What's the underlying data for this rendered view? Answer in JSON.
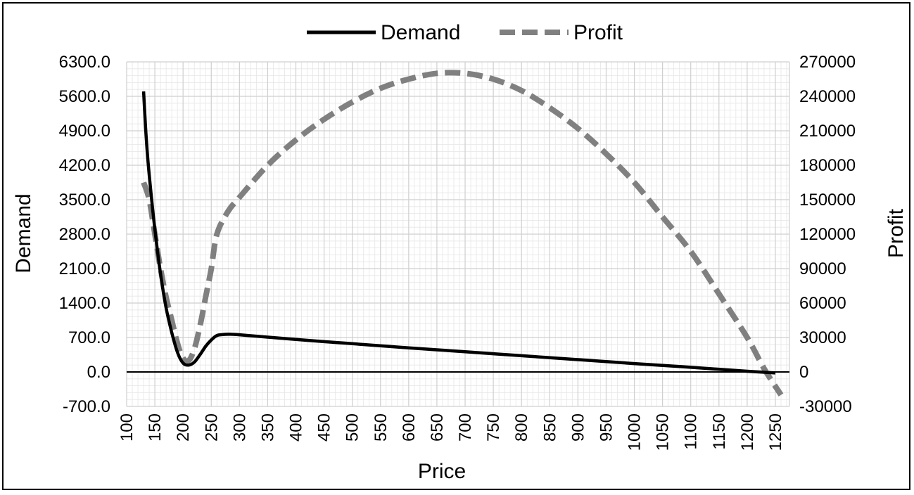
{
  "chart_data": {
    "type": "line",
    "title": "",
    "xlabel": "Price",
    "ylabel": "Demand",
    "y2label": "Profit",
    "xlim": [
      100,
      1275
    ],
    "ylim": [
      -700,
      6300
    ],
    "y2lim": [
      -30000,
      270000
    ],
    "x_ticks": [
      "100",
      "150",
      "200",
      "250",
      "300",
      "350",
      "400",
      "450",
      "500",
      "550",
      "600",
      "650",
      "700",
      "750",
      "800",
      "850",
      "900",
      "950",
      "1000",
      "1050",
      "1100",
      "1150",
      "1200",
      "1250"
    ],
    "y_ticks": [
      "-700.0",
      "0.0",
      "700.0",
      "1400.0",
      "2100.0",
      "2800.0",
      "3500.0",
      "4200.0",
      "4900.0",
      "5600.0",
      "6300.0"
    ],
    "y2_ticks": [
      "-30000",
      "0",
      "30000",
      "60000",
      "90000",
      "120000",
      "150000",
      "180000",
      "210000",
      "240000",
      "270000"
    ],
    "grid": true,
    "legend_position": "top",
    "series": [
      {
        "name": "Demand",
        "axis": "left",
        "color": "#000000",
        "style": "solid",
        "x": [
          130,
          135,
          140,
          150,
          160,
          170,
          180,
          190,
          200,
          210,
          220,
          230,
          240,
          250,
          260,
          270,
          280,
          300,
          400,
          500,
          600,
          700,
          800,
          900,
          1000,
          1100,
          1200,
          1250
        ],
        "y": [
          5700,
          4700,
          4000,
          2900,
          2000,
          1300,
          800,
          400,
          180,
          140,
          200,
          350,
          520,
          650,
          740,
          760,
          765,
          755,
          660,
          575,
          490,
          410,
          330,
          250,
          170,
          95,
          15,
          -20
        ]
      },
      {
        "name": "Profit",
        "axis": "right",
        "color": "#808080",
        "style": "dashed",
        "x": [
          130,
          140,
          150,
          160,
          170,
          180,
          190,
          200,
          210,
          220,
          230,
          240,
          250,
          260,
          280,
          300,
          350,
          400,
          450,
          500,
          550,
          600,
          650,
          700,
          750,
          800,
          850,
          900,
          950,
          1000,
          1050,
          1100,
          1150,
          1200,
          1230,
          1260
        ],
        "y": [
          165000,
          150000,
          120000,
          90000,
          65000,
          45000,
          25000,
          12000,
          10000,
          20000,
          40000,
          65000,
          90000,
          120000,
          140000,
          152000,
          180000,
          202000,
          220000,
          235000,
          247000,
          255000,
          260000,
          260000,
          255000,
          245000,
          230000,
          212000,
          190000,
          165000,
          135000,
          105000,
          68000,
          30000,
          3000,
          -20000
        ]
      }
    ]
  }
}
